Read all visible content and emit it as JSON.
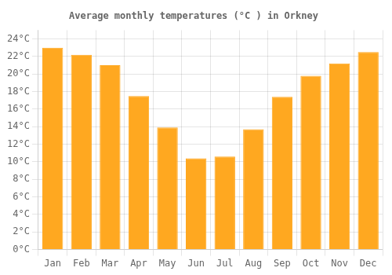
{
  "chart_data": {
    "type": "bar",
    "title": "Average monthly temperatures (°C ) in Orkney",
    "categories": [
      "Jan",
      "Feb",
      "Mar",
      "Apr",
      "May",
      "Jun",
      "Jul",
      "Aug",
      "Sep",
      "Oct",
      "Nov",
      "Dec"
    ],
    "values": [
      23.0,
      22.2,
      21.0,
      17.5,
      13.9,
      10.4,
      10.6,
      13.7,
      17.4,
      19.8,
      21.2,
      22.5
    ],
    "color": "#FFA820",
    "ylim": [
      0,
      25
    ],
    "yticks": [
      {
        "value": 0,
        "label": "0°C"
      },
      {
        "value": 2,
        "label": "2°C"
      },
      {
        "value": 4,
        "label": "4°C"
      },
      {
        "value": 6,
        "label": "6°C"
      },
      {
        "value": 8,
        "label": "8°C"
      },
      {
        "value": 10,
        "label": "10°C"
      },
      {
        "value": 12,
        "label": "12°C"
      },
      {
        "value": 14,
        "label": "14°C"
      },
      {
        "value": 16,
        "label": "16°C"
      },
      {
        "value": 18,
        "label": "18°C"
      },
      {
        "value": 20,
        "label": "20°C"
      },
      {
        "value": 22,
        "label": "22°C"
      },
      {
        "value": 24,
        "label": "24°C"
      }
    ],
    "grid": true
  }
}
